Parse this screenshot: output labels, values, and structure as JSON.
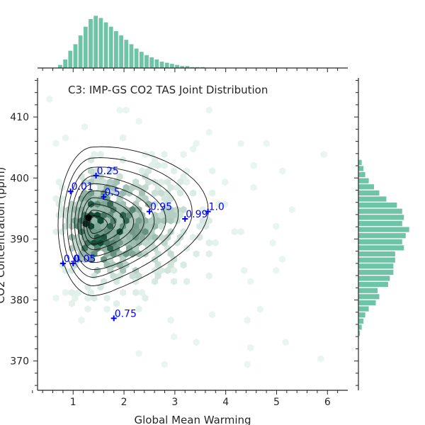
{
  "colors": {
    "accent": "#6fc3a6",
    "hex_dark": "#0e4a34",
    "hex_mid": "#2e8b67",
    "hex_light": "#bfe4d4",
    "marker": "#0000ff",
    "axis": "#262626",
    "contour": "#111111"
  },
  "chart_data": {
    "type": "scatter",
    "subtype": "jointplot-hexbin-kde",
    "title": "C3: IMP-GS CO2 TAS Joint Distribution",
    "xlabel": "Global Mean Warming",
    "ylabel": "CO2 Concentration (ppm)",
    "xlim": [
      0.3,
      6.4
    ],
    "ylim": [
      365.2,
      416.4
    ],
    "xticks": [
      1,
      2,
      3,
      4,
      5,
      6
    ],
    "yticks": [
      370,
      380,
      390,
      400,
      410
    ],
    "grid": false,
    "legend": "none",
    "quantile_markers": [
      {
        "label": "0.0",
        "x": 0.8,
        "y": 386.0
      },
      {
        "label": "0.01",
        "x": 0.95,
        "y": 397.8
      },
      {
        "label": "0.05",
        "x": 1.0,
        "y": 386.0
      },
      {
        "label": "0.25",
        "x": 1.45,
        "y": 400.4
      },
      {
        "label": "0.5",
        "x": 1.6,
        "y": 396.9
      },
      {
        "label": "0.75",
        "x": 1.8,
        "y": 377.0
      },
      {
        "label": "0.95",
        "x": 2.5,
        "y": 394.5
      },
      {
        "label": "0.99",
        "x": 3.2,
        "y": 393.3
      },
      {
        "label": "1.0",
        "x": 3.65,
        "y": 394.5
      }
    ],
    "x_marginal_histogram": {
      "bin_start": 0.7,
      "bin_width": 0.1,
      "counts": [
        3,
        8,
        16,
        22,
        30,
        38,
        45,
        48,
        46,
        42,
        38,
        34,
        30,
        26,
        22,
        18,
        15,
        12,
        10,
        8,
        6,
        5,
        4,
        3,
        2,
        2,
        1,
        1,
        1,
        0.5,
        0.5,
        0.3
      ]
    },
    "y_marginal_histogram": {
      "bin_start": 374.0,
      "bin_width": 1.0,
      "counts": [
        1,
        2,
        3,
        4,
        6,
        10,
        12,
        11,
        17,
        18,
        20,
        20,
        21,
        21,
        26,
        25,
        27,
        29,
        25,
        26,
        25,
        22,
        16,
        12,
        9,
        6,
        4,
        3,
        2
      ]
    }
  }
}
